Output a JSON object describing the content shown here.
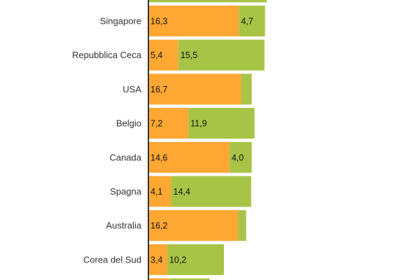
{
  "chart_data": {
    "type": "bar",
    "orientation": "horizontal",
    "stacked": true,
    "categories": [
      "Singapore",
      "Repubblica Ceca",
      "USA",
      "Belgio",
      "Canada",
      "Spagna",
      "Australia",
      "Corea del Sud"
    ],
    "series": [
      {
        "color": "#ffa733",
        "values": [
          16.3,
          5.4,
          16.7,
          7.2,
          14.6,
          4.1,
          16.2,
          3.4
        ],
        "value_labels": [
          "16,3",
          "5,4",
          "16,7",
          "7,2",
          "14,6",
          "4,1",
          "16,2",
          "3,4"
        ]
      },
      {
        "color": "#a8c446",
        "values": [
          4.7,
          15.5,
          1.9,
          11.9,
          4.0,
          14.4,
          1.4,
          10.2
        ],
        "value_labels": [
          "4,7",
          "15,5",
          "",
          "11,9",
          "4,0",
          "14,4",
          "",
          "10,2"
        ]
      }
    ],
    "partial_rows": {
      "above": {
        "total": 21.3
      },
      "below": {
        "values": [
          3.9,
          7.1
        ]
      }
    },
    "xlim": [
      0,
      21.5
    ],
    "legend": "none",
    "grid": false
  }
}
